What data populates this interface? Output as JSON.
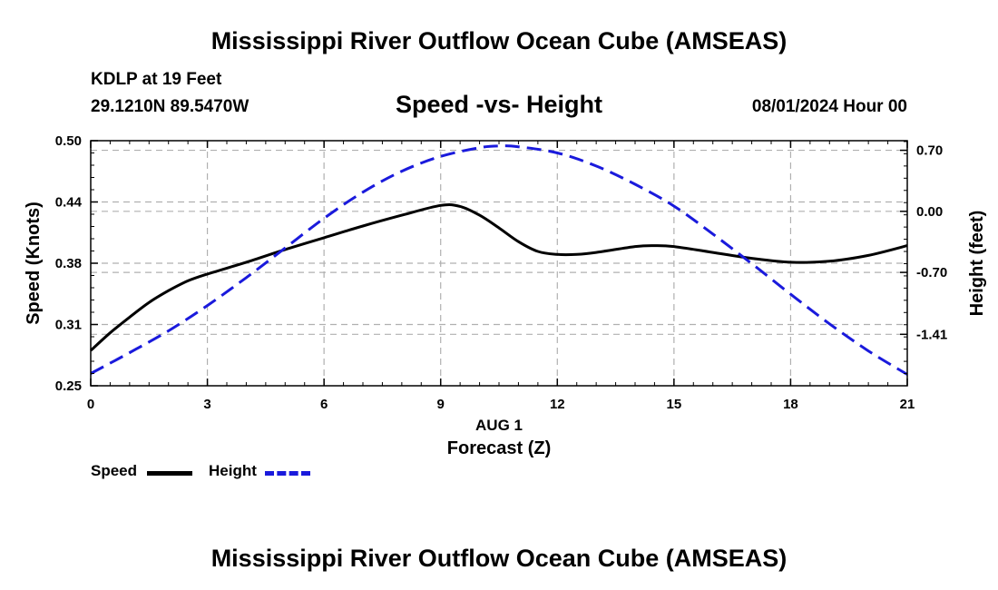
{
  "header": {
    "title": "Mississippi River Outflow Ocean Cube (AMSEAS)",
    "station": "KDLP at 19 Feet",
    "coords": "29.1210N  89.5470W",
    "datetime": "08/01/2024 Hour 00"
  },
  "footer": {
    "title": "Mississippi River Outflow Ocean Cube (AMSEAS)"
  },
  "legend": {
    "speed_label": "Speed",
    "height_label": "Height"
  },
  "colors": {
    "speed": "#000000",
    "height": "#1a1adc",
    "grid": "#b0b0b0"
  },
  "chart_data": {
    "type": "line",
    "title": "Speed -vs- Height",
    "xlabel": "Forecast (Z)",
    "xlabel_date": "AUG 1",
    "ylabel_left": "Speed (Knots)",
    "ylabel_right": "Height (feet)",
    "xlim": [
      0,
      21
    ],
    "ylim_left": [
      0.25,
      0.5
    ],
    "ylim_right": [
      -2.0,
      0.81
    ],
    "x_ticks": [
      0,
      3,
      6,
      9,
      12,
      15,
      18,
      21
    ],
    "x_tick_labels": [
      "0",
      "3",
      "6",
      "9",
      "12",
      "15",
      "18",
      "21"
    ],
    "y_left_ticks": [
      0.25,
      0.3125,
      0.375,
      0.4375,
      0.5
    ],
    "y_left_tick_labels": [
      "0.25",
      "0.31",
      "0.38",
      "0.44",
      "0.50"
    ],
    "y_right_ticks": [
      0.7,
      0.0,
      -0.7,
      -1.41
    ],
    "y_right_tick_labels": [
      "0.70",
      "0.00",
      "-0.70",
      "-1.41"
    ],
    "series": [
      {
        "name": "Speed",
        "axis": "left",
        "style": "solid",
        "x": [
          0,
          0.5,
          1,
          1.5,
          2,
          2.5,
          3,
          4,
          5,
          6,
          7,
          8,
          9,
          9.5,
          10,
          10.5,
          11,
          11.5,
          12,
          12.5,
          13,
          14,
          14.5,
          15,
          16,
          17,
          18,
          19,
          20,
          21
        ],
        "values": [
          0.286,
          0.304,
          0.32,
          0.335,
          0.347,
          0.357,
          0.364,
          0.376,
          0.389,
          0.401,
          0.413,
          0.424,
          0.434,
          0.433,
          0.424,
          0.411,
          0.397,
          0.387,
          0.384,
          0.384,
          0.386,
          0.392,
          0.393,
          0.392,
          0.386,
          0.38,
          0.376,
          0.377,
          0.383,
          0.393
        ]
      },
      {
        "name": "Height",
        "axis": "right",
        "style": "dashed",
        "x": [
          0,
          1,
          2,
          3,
          4,
          5,
          6,
          7,
          8,
          9,
          10,
          10.5,
          11,
          12,
          13,
          14,
          15,
          16,
          17,
          18,
          19,
          20,
          21
        ],
        "values": [
          -1.86,
          -1.62,
          -1.37,
          -1.08,
          -0.76,
          -0.42,
          -0.08,
          0.22,
          0.46,
          0.63,
          0.73,
          0.75,
          0.74,
          0.67,
          0.52,
          0.31,
          0.06,
          -0.26,
          -0.6,
          -0.95,
          -1.29,
          -1.6,
          -1.87
        ]
      }
    ]
  }
}
